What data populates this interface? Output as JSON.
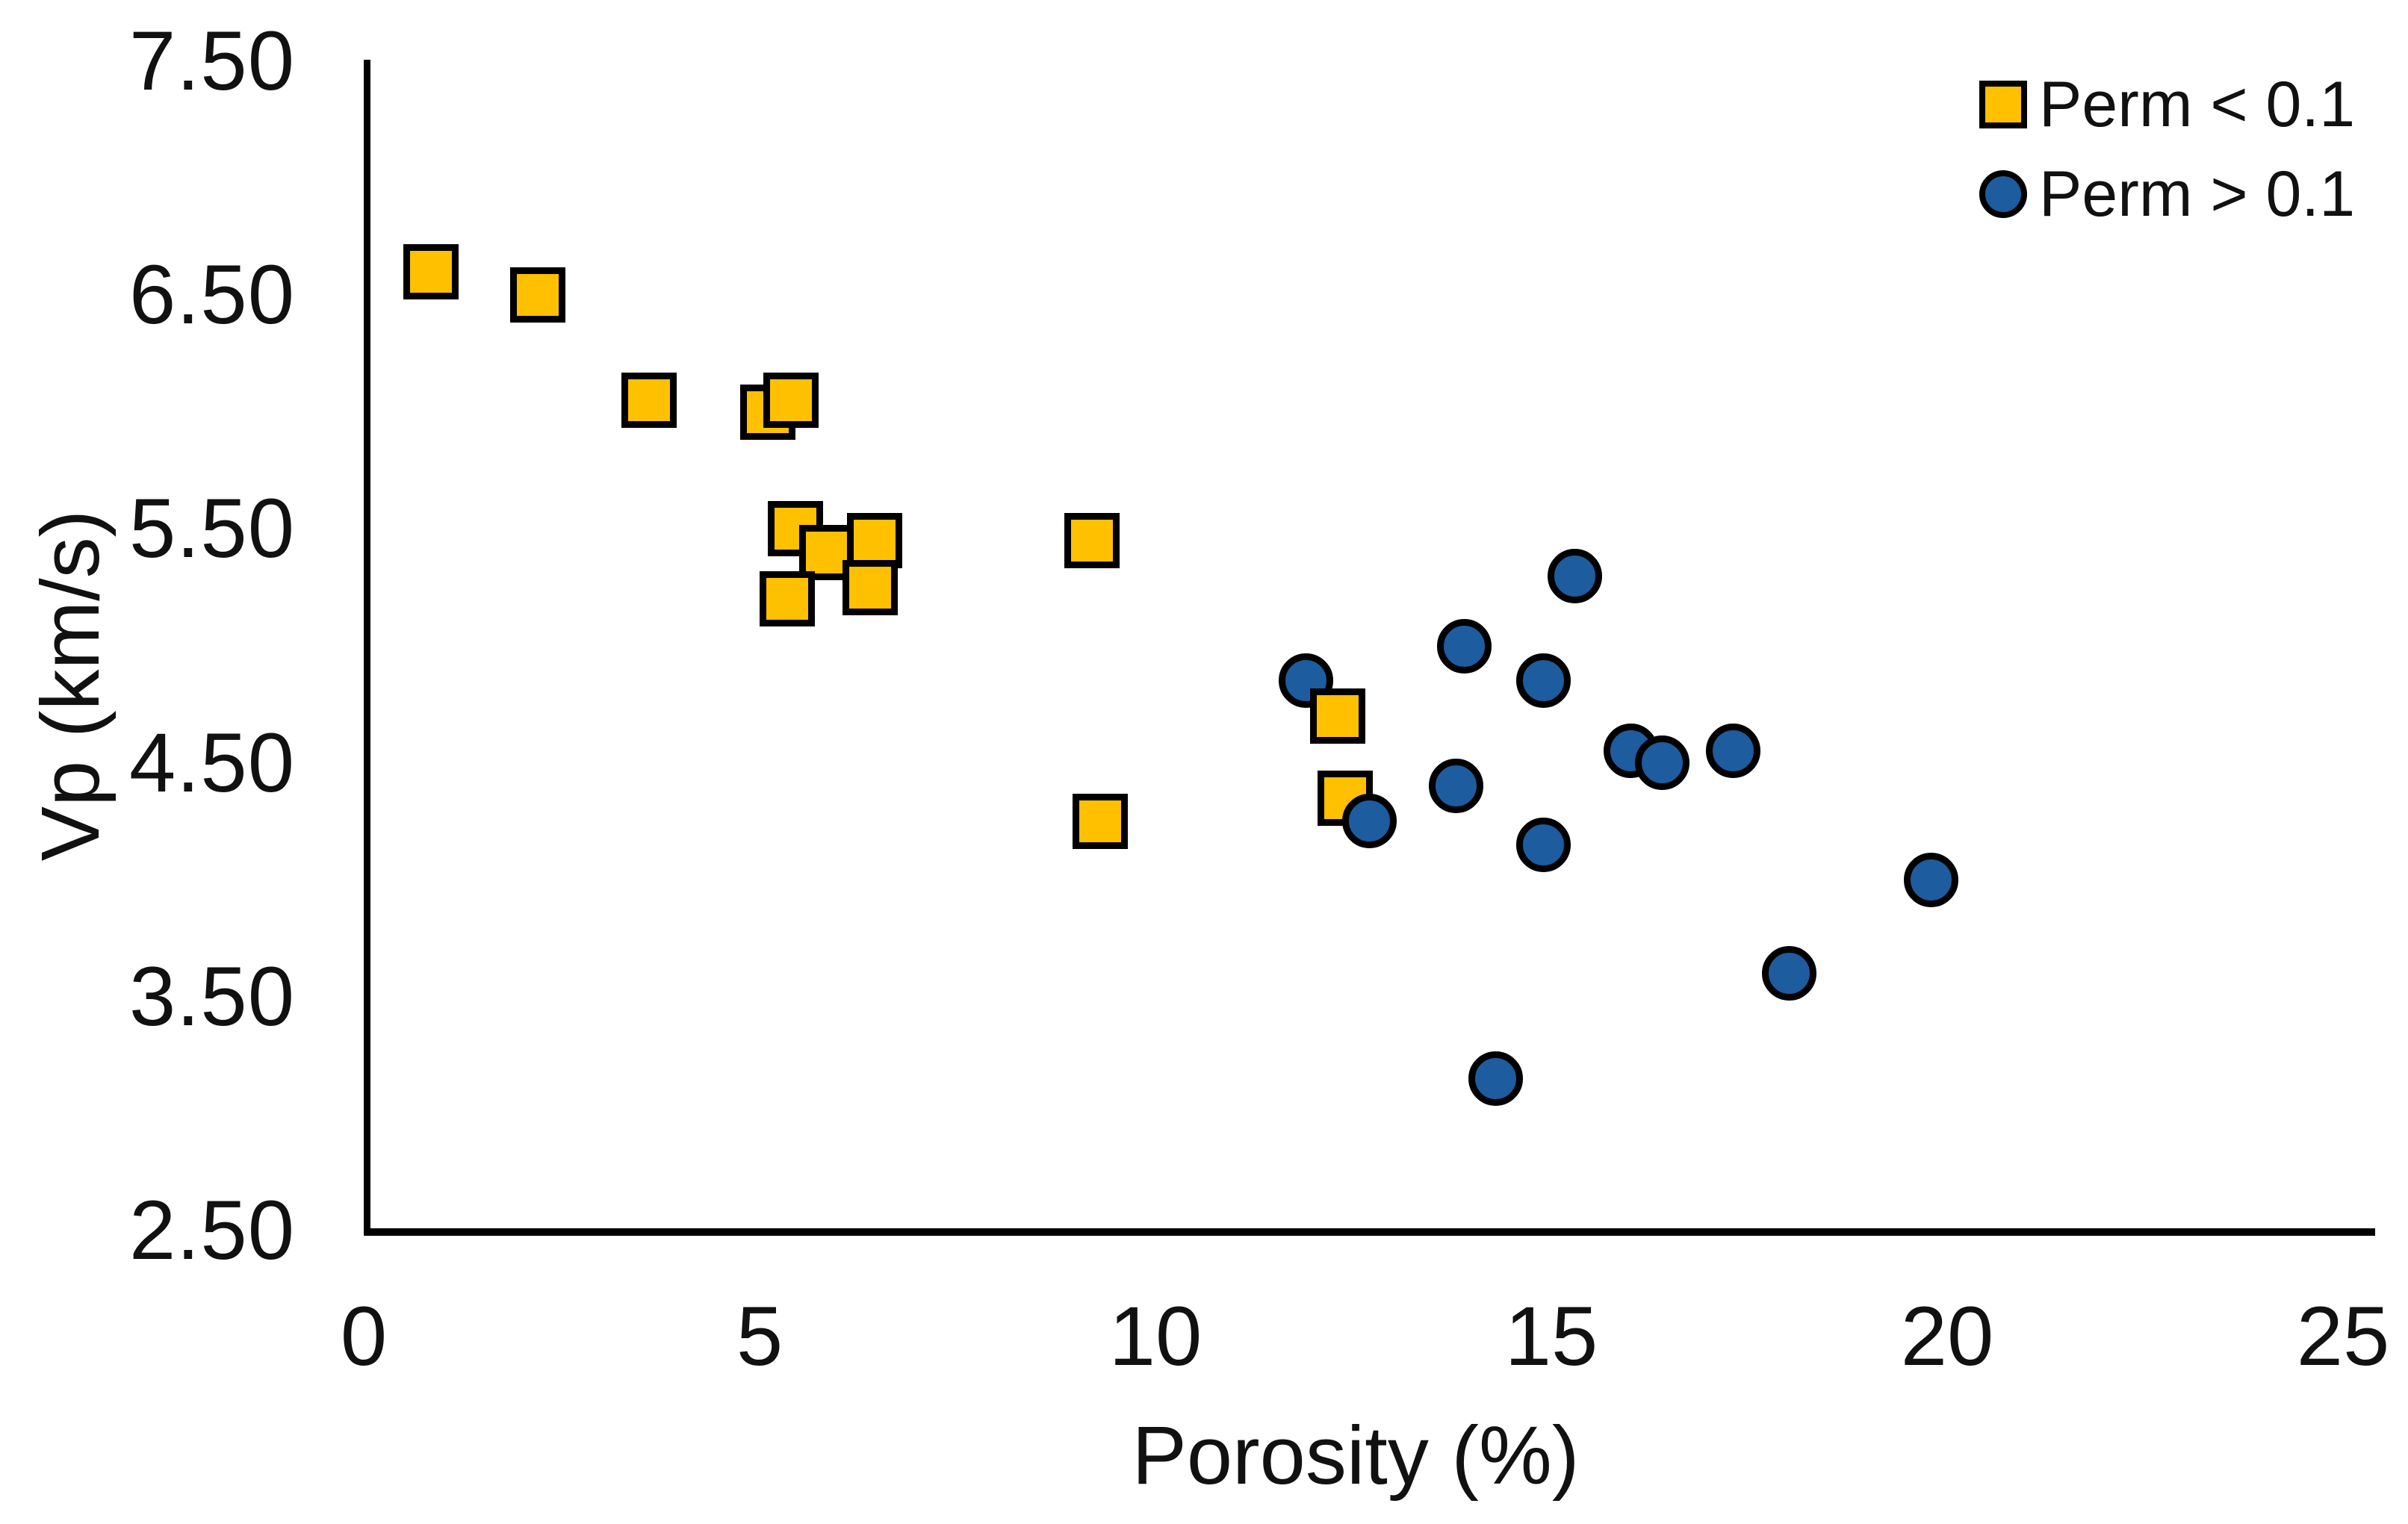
{
  "chart_data": {
    "type": "scatter",
    "title": "",
    "xlabel": "Porosity (%)",
    "ylabel": "Vp (km/s)",
    "xlim": [
      0,
      25
    ],
    "ylim": [
      2.5,
      7.5
    ],
    "x_ticks": [
      "0",
      "5",
      "10",
      "15",
      "20",
      "25"
    ],
    "y_ticks": [
      "7.50",
      "6.50",
      "5.50",
      "4.50",
      "3.50",
      "2.50"
    ],
    "y_tick_values": [
      7.5,
      6.5,
      5.5,
      4.5,
      3.5,
      2.5
    ],
    "x_tick_values": [
      0,
      5,
      10,
      15,
      20,
      25
    ],
    "grid": false,
    "legend_position": "top-right",
    "series": [
      {
        "name": "Perm < 0.1",
        "marker": "square",
        "color": "#FFC000",
        "border_color": "#000000",
        "points": [
          [
            0.85,
            6.6
          ],
          [
            2.2,
            6.5
          ],
          [
            3.6,
            6.05
          ],
          [
            5.1,
            6.0
          ],
          [
            5.4,
            6.05
          ],
          [
            5.45,
            5.5
          ],
          [
            5.85,
            5.4
          ],
          [
            6.45,
            5.45
          ],
          [
            5.35,
            5.2
          ],
          [
            6.4,
            5.25
          ],
          [
            9.2,
            5.45
          ],
          [
            9.3,
            4.25
          ],
          [
            12.3,
            4.7,
            "front"
          ],
          [
            12.4,
            4.35
          ]
        ]
      },
      {
        "name": "Perm > 0.1",
        "marker": "circle",
        "color": "#1D5C9E",
        "border_color": "#000000",
        "points": [
          [
            11.9,
            4.85
          ],
          [
            12.7,
            4.25
          ],
          [
            13.8,
            4.4
          ],
          [
            13.9,
            5.0
          ],
          [
            14.3,
            3.15
          ],
          [
            14.9,
            4.85
          ],
          [
            14.9,
            4.15
          ],
          [
            15.3,
            5.3
          ],
          [
            16.0,
            4.55
          ],
          [
            16.4,
            4.5
          ],
          [
            17.3,
            4.55
          ],
          [
            18.0,
            3.6
          ],
          [
            19.8,
            4.0
          ]
        ]
      }
    ]
  }
}
